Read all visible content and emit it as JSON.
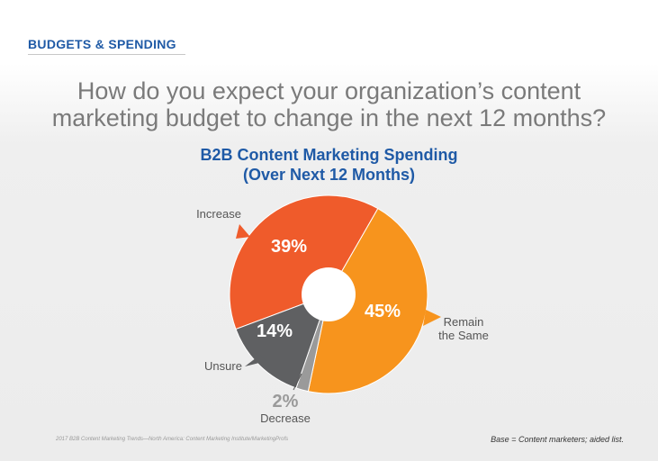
{
  "header": {
    "section": "BUDGETS & SPENDING",
    "question_line1": "How do you expect your organization’s content",
    "question_line2": "marketing budget to change in the next 12 months?"
  },
  "chart_data": {
    "type": "pie",
    "title": "B2B Content Marketing Spending",
    "subtitle": "(Over Next 12 Months)",
    "slices": [
      {
        "name": "Increase",
        "value": 39,
        "label": "39%",
        "color": "#ef5b2b"
      },
      {
        "name": "Remain the Same",
        "value": 45,
        "label": "45%",
        "color": "#f7941d"
      },
      {
        "name": "Decrease",
        "value": 2,
        "label": "2%",
        "color": "#9a9a9a"
      },
      {
        "name": "Unsure",
        "value": 14,
        "label": "14%",
        "color": "#5f6062"
      }
    ],
    "category_labels": {
      "Increase": "Increase",
      "Remain the Same": [
        "Remain",
        "the Same"
      ],
      "Decrease": "Decrease",
      "Unsure": "Unsure"
    }
  },
  "footer": {
    "source": "2017 B2B Content Marketing Trends—North America: Content Marketing Institute/MarketingProfs",
    "base": "Base = Content marketers; aided list."
  }
}
